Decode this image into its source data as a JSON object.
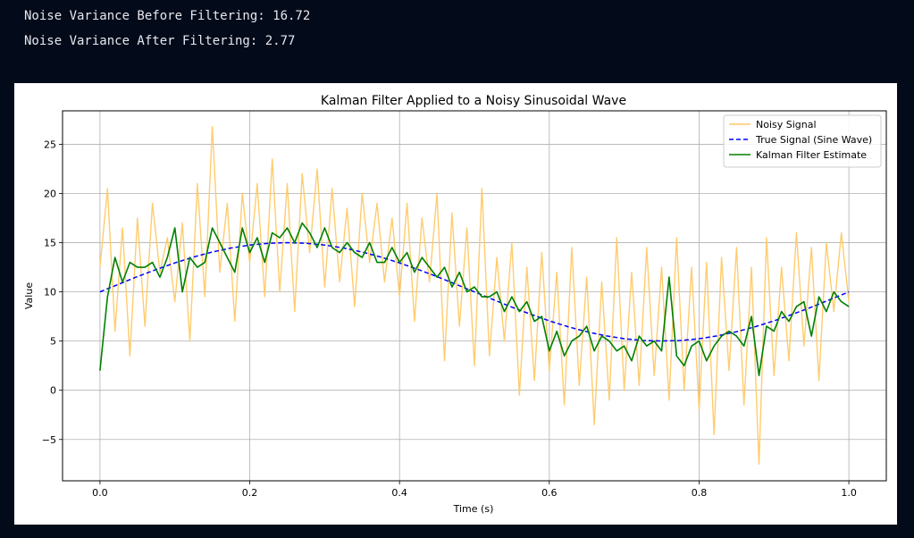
{
  "console": {
    "before": "Noise Variance Before Filtering: 16.72",
    "after": "Noise Variance After Filtering: 2.77"
  },
  "chart_data": {
    "type": "line",
    "title": "Kalman Filter Applied to a Noisy Sinusoidal Wave",
    "xlabel": "Time (s)",
    "ylabel": "Value",
    "xlim": [
      -0.05,
      1.05
    ],
    "ylim": [
      -9.2,
      28.4
    ],
    "xticks": [
      0.0,
      0.2,
      0.4,
      0.6,
      0.8,
      1.0
    ],
    "xtick_labels": [
      "0.0",
      "0.2",
      "0.4",
      "0.6",
      "0.8",
      "1.0"
    ],
    "yticks": [
      -5,
      0,
      5,
      10,
      15,
      20,
      25
    ],
    "ytick_labels": [
      "−5",
      "0",
      "5",
      "10",
      "15",
      "20",
      "25"
    ],
    "grid": true,
    "legend_placement": "upper-right",
    "series": [
      {
        "name": "Noisy Signal",
        "color": "#ffc966",
        "style": "solid",
        "x": [
          0.0,
          0.01,
          0.02,
          0.03,
          0.04,
          0.05,
          0.06,
          0.07,
          0.08,
          0.09,
          0.1,
          0.11,
          0.12,
          0.13,
          0.14,
          0.15,
          0.16,
          0.17,
          0.18,
          0.19,
          0.2,
          0.21,
          0.22,
          0.23,
          0.24,
          0.25,
          0.26,
          0.27,
          0.28,
          0.29,
          0.3,
          0.31,
          0.32,
          0.33,
          0.34,
          0.35,
          0.36,
          0.37,
          0.38,
          0.39,
          0.4,
          0.41,
          0.42,
          0.43,
          0.44,
          0.45,
          0.46,
          0.47,
          0.48,
          0.49,
          0.5,
          0.51,
          0.52,
          0.53,
          0.54,
          0.55,
          0.56,
          0.57,
          0.58,
          0.59,
          0.6,
          0.61,
          0.62,
          0.63,
          0.64,
          0.65,
          0.66,
          0.67,
          0.68,
          0.69,
          0.7,
          0.71,
          0.72,
          0.73,
          0.74,
          0.75,
          0.76,
          0.77,
          0.78,
          0.79,
          0.8,
          0.81,
          0.82,
          0.83,
          0.84,
          0.85,
          0.86,
          0.87,
          0.88,
          0.89,
          0.9,
          0.91,
          0.92,
          0.93,
          0.94,
          0.95,
          0.96,
          0.97,
          0.98,
          0.99,
          1.0
        ],
        "y": [
          12.5,
          20.5,
          6.0,
          16.5,
          3.5,
          17.5,
          6.5,
          19.0,
          12.0,
          15.5,
          9.0,
          17.0,
          5.0,
          21.0,
          9.5,
          26.8,
          12.0,
          19.0,
          7.0,
          20.0,
          13.0,
          21.0,
          9.5,
          23.5,
          10.0,
          21.0,
          8.0,
          22.0,
          14.0,
          22.5,
          10.5,
          20.5,
          11.0,
          18.5,
          8.5,
          20.0,
          13.0,
          19.0,
          11.0,
          17.5,
          9.5,
          19.0,
          7.0,
          17.5,
          11.0,
          20.0,
          3.0,
          18.0,
          6.5,
          16.5,
          2.5,
          20.5,
          3.5,
          13.5,
          5.0,
          15.0,
          -0.5,
          12.5,
          1.0,
          14.0,
          2.0,
          12.0,
          -1.5,
          14.5,
          0.5,
          11.5,
          -3.5,
          11.0,
          -1.0,
          15.5,
          0.0,
          12.0,
          0.5,
          14.5,
          1.5,
          12.5,
          -1.0,
          15.5,
          0.0,
          12.5,
          -2.0,
          13.0,
          -4.5,
          13.5,
          2.0,
          14.5,
          -1.5,
          12.5,
          -7.5,
          15.5,
          1.5,
          12.5,
          3.0,
          16.0,
          4.5,
          14.5,
          1.0,
          15.0,
          8.0,
          16.0,
          9.0
        ]
      },
      {
        "name": "True Signal (Sine Wave)",
        "color": "#0000ff",
        "style": "dashed",
        "x": [
          0.0,
          0.025,
          0.05,
          0.075,
          0.1,
          0.125,
          0.15,
          0.175,
          0.2,
          0.225,
          0.25,
          0.275,
          0.3,
          0.325,
          0.35,
          0.375,
          0.4,
          0.425,
          0.45,
          0.475,
          0.5,
          0.525,
          0.55,
          0.575,
          0.6,
          0.625,
          0.65,
          0.675,
          0.7,
          0.725,
          0.75,
          0.775,
          0.8,
          0.825,
          0.85,
          0.875,
          0.9,
          0.925,
          0.95,
          0.975,
          1.0
        ],
        "y": [
          10.0,
          10.78,
          11.55,
          12.27,
          12.94,
          13.54,
          14.05,
          14.46,
          14.76,
          14.94,
          15.0,
          14.94,
          14.76,
          14.46,
          14.05,
          13.54,
          12.94,
          12.27,
          11.55,
          10.78,
          10.0,
          9.22,
          8.45,
          7.73,
          7.06,
          6.46,
          5.95,
          5.54,
          5.24,
          5.06,
          5.0,
          5.06,
          5.24,
          5.54,
          5.95,
          6.46,
          7.06,
          7.73,
          8.45,
          9.22,
          10.0
        ]
      },
      {
        "name": "Kalman Filter Estimate",
        "color": "#008000",
        "style": "solid",
        "x": [
          0.0,
          0.01,
          0.02,
          0.03,
          0.04,
          0.05,
          0.06,
          0.07,
          0.08,
          0.09,
          0.1,
          0.11,
          0.12,
          0.13,
          0.14,
          0.15,
          0.16,
          0.17,
          0.18,
          0.19,
          0.2,
          0.21,
          0.22,
          0.23,
          0.24,
          0.25,
          0.26,
          0.27,
          0.28,
          0.29,
          0.3,
          0.31,
          0.32,
          0.33,
          0.34,
          0.35,
          0.36,
          0.37,
          0.38,
          0.39,
          0.4,
          0.41,
          0.42,
          0.43,
          0.44,
          0.45,
          0.46,
          0.47,
          0.48,
          0.49,
          0.5,
          0.51,
          0.52,
          0.53,
          0.54,
          0.55,
          0.56,
          0.57,
          0.58,
          0.59,
          0.6,
          0.61,
          0.62,
          0.63,
          0.64,
          0.65,
          0.66,
          0.67,
          0.68,
          0.69,
          0.7,
          0.71,
          0.72,
          0.73,
          0.74,
          0.75,
          0.76,
          0.77,
          0.78,
          0.79,
          0.8,
          0.81,
          0.82,
          0.83,
          0.84,
          0.85,
          0.86,
          0.87,
          0.88,
          0.89,
          0.9,
          0.91,
          0.92,
          0.93,
          0.94,
          0.95,
          0.96,
          0.97,
          0.98,
          0.99,
          1.0
        ],
        "y": [
          2.0,
          9.5,
          13.5,
          11.0,
          13.0,
          12.5,
          12.5,
          13.0,
          11.5,
          13.5,
          16.5,
          10.0,
          13.5,
          12.5,
          13.0,
          16.5,
          15.0,
          13.5,
          12.0,
          16.5,
          14.0,
          15.5,
          13.0,
          16.0,
          15.5,
          16.5,
          15.0,
          17.0,
          16.0,
          14.5,
          16.5,
          14.5,
          14.0,
          15.0,
          14.0,
          13.5,
          15.0,
          13.0,
          13.0,
          14.5,
          13.0,
          14.0,
          12.0,
          13.5,
          12.5,
          11.5,
          12.5,
          10.5,
          12.0,
          10.0,
          10.5,
          9.5,
          9.5,
          10.0,
          8.0,
          9.5,
          8.0,
          9.0,
          7.0,
          7.5,
          4.0,
          6.0,
          3.5,
          5.0,
          5.5,
          6.5,
          4.0,
          5.5,
          5.0,
          4.0,
          4.5,
          3.0,
          5.5,
          4.5,
          5.0,
          4.0,
          11.5,
          3.5,
          2.5,
          4.5,
          5.0,
          3.0,
          4.5,
          5.5,
          6.0,
          5.5,
          4.5,
          7.5,
          1.5,
          6.5,
          6.0,
          8.0,
          7.0,
          8.5,
          9.0,
          5.5,
          9.5,
          8.0,
          10.0,
          9.0,
          8.5
        ]
      }
    ]
  }
}
